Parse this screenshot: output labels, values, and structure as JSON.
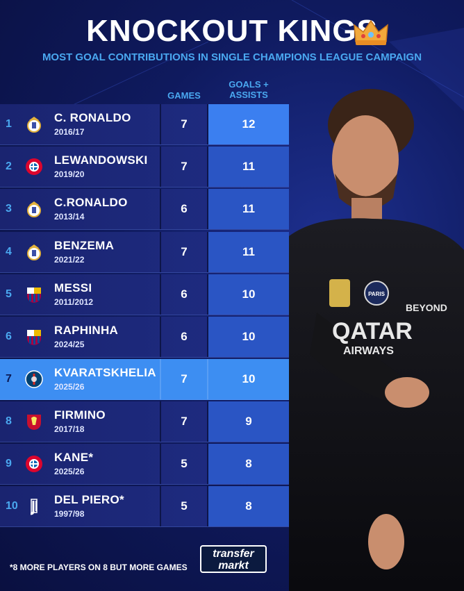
{
  "title": "KNOCKOUT KINGS",
  "subtitle": "MOST GOAL CONTRIBUTIONS IN SINGLE CHAMPIONS LEAGUE CAMPAIGN",
  "columns": {
    "games": "GAMES",
    "ga_line1": "GOALS +",
    "ga_line2": "ASSISTS"
  },
  "rows": [
    {
      "rank": "1",
      "name": "C. RONALDO",
      "season": "2016/17",
      "games": "7",
      "ga": "12",
      "club": "real-madrid"
    },
    {
      "rank": "2",
      "name": "LEWANDOWSKI",
      "season": "2019/20",
      "games": "7",
      "ga": "11",
      "club": "bayern"
    },
    {
      "rank": "3",
      "name": "C.RONALDO",
      "season": "2013/14",
      "games": "6",
      "ga": "11",
      "club": "real-madrid"
    },
    {
      "rank": "4",
      "name": "BENZEMA",
      "season": "2021/22",
      "games": "7",
      "ga": "11",
      "club": "real-madrid"
    },
    {
      "rank": "5",
      "name": "MESSI",
      "season": "2011/2012",
      "games": "6",
      "ga": "10",
      "club": "barcelona"
    },
    {
      "rank": "6",
      "name": "RAPHINHA",
      "season": "2024/25",
      "games": "6",
      "ga": "10",
      "club": "barcelona"
    },
    {
      "rank": "7",
      "name": "KVARATSKHELIA",
      "season": "2025/26",
      "games": "7",
      "ga": "10",
      "club": "psg"
    },
    {
      "rank": "8",
      "name": "FIRMINO",
      "season": "2017/18",
      "games": "7",
      "ga": "9",
      "club": "liverpool"
    },
    {
      "rank": "9",
      "name": "KANE*",
      "season": "2025/26",
      "games": "5",
      "ga": "8",
      "club": "bayern"
    },
    {
      "rank": "10",
      "name": "DEL PIERO*",
      "season": "1997/98",
      "games": "5",
      "ga": "8",
      "club": "juventus"
    }
  ],
  "footnote": "*8 MORE PLAYERS ON 8 BUT MORE GAMES",
  "brand": {
    "line1": "transfer",
    "line2": "markt"
  },
  "player_shirt": {
    "sponsor1": "QATAR",
    "sponsor2": "AIRWAYS",
    "sleeve": "BEYOND",
    "badge": "PARIS"
  },
  "colors": {
    "accent": "#4aa8f0",
    "highlight": "#3d8ef2",
    "background": "#0f1a5e"
  }
}
